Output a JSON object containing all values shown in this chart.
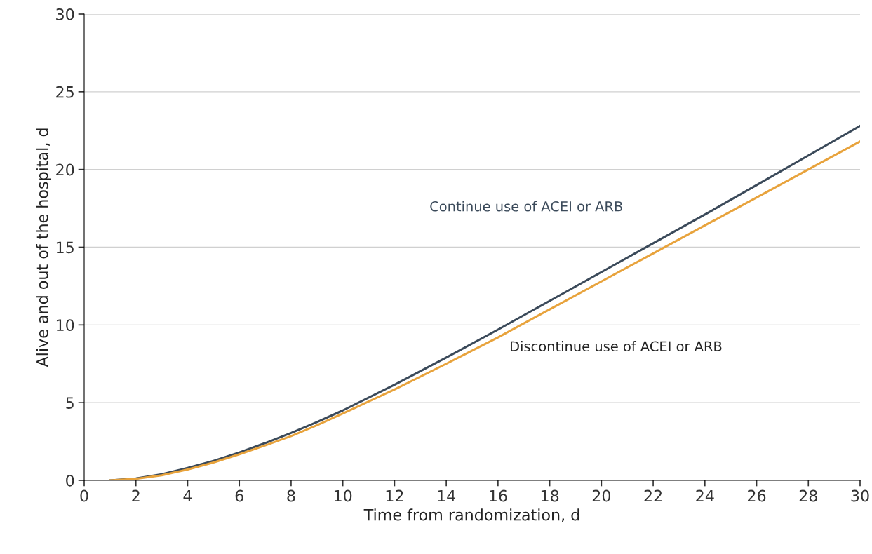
{
  "chart_data": {
    "type": "line",
    "xlabel": "Time from randomization, d",
    "ylabel": "Alive and out of the hospital, d",
    "x": [
      1,
      2,
      3,
      4,
      5,
      6,
      7,
      8,
      9,
      10,
      12,
      14,
      16,
      18,
      20,
      22,
      24,
      26,
      28,
      30
    ],
    "series": [
      {
        "name": "Continue use of ACEI or ARB",
        "color": "#3b4a5a",
        "values": [
          0,
          0.12,
          0.4,
          0.8,
          1.25,
          1.8,
          2.4,
          3.05,
          3.75,
          4.5,
          6.15,
          7.9,
          9.7,
          11.55,
          13.4,
          15.25,
          17.1,
          19.0,
          20.9,
          22.8
        ]
      },
      {
        "name": "Discontinue use of ACEI or ARB",
        "color": "#e8a33c",
        "values": [
          0,
          0.1,
          0.33,
          0.7,
          1.15,
          1.68,
          2.25,
          2.85,
          3.55,
          4.3,
          5.85,
          7.5,
          9.2,
          11.0,
          12.8,
          14.6,
          16.4,
          18.2,
          20.0,
          21.8
        ]
      }
    ],
    "xlim": [
      0,
      30
    ],
    "xticks": [
      0,
      2,
      4,
      6,
      8,
      10,
      12,
      14,
      16,
      18,
      20,
      22,
      24,
      26,
      28,
      30
    ],
    "ylim": [
      0,
      30
    ],
    "yticks": [
      0,
      5,
      10,
      15,
      20,
      25,
      30
    ],
    "grid": "y",
    "line_style": "solid",
    "marker": "none"
  }
}
